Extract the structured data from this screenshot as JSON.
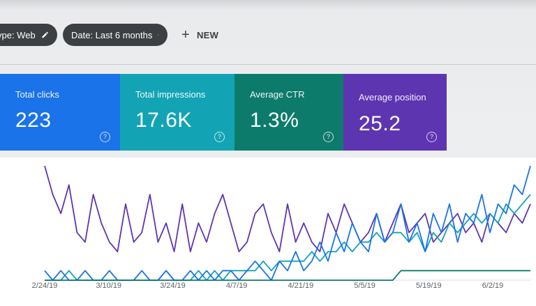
{
  "filters": {
    "type_chip": "ype: Web",
    "date_chip": "Date: Last 6 months",
    "new_button": "NEW",
    "edit_icon": "pencil-icon",
    "plus_icon": "plus-icon"
  },
  "cards": [
    {
      "title": "Total clicks",
      "value": "223",
      "color": "#1a73e8"
    },
    {
      "title": "Total impressions",
      "value": "17.6K",
      "color": "#12a4b4"
    },
    {
      "title": "Average CTR",
      "value": "1.3%",
      "color": "#0d7b6b"
    },
    {
      "title": "Average position",
      "value": "25.2",
      "color": "#5e35b1"
    }
  ],
  "help_glyph": "?",
  "chart_data": {
    "type": "line",
    "x_tick_labels": [
      "2/24/19",
      "3/10/19",
      "3/24/19",
      "4/7/19",
      "4/21/19",
      "5/5/19",
      "5/19/19",
      "6/2/19"
    ],
    "grid": false,
    "series": [
      {
        "color": "#5e35b1",
        "values": [
          12,
          9,
          7,
          10,
          5,
          4,
          9,
          6,
          4,
          3,
          8,
          4,
          5,
          9,
          4,
          6,
          3,
          8,
          3,
          6,
          4,
          7,
          9,
          6,
          3,
          4,
          7,
          8,
          5,
          3,
          8,
          4,
          6,
          4,
          3,
          7,
          5,
          8,
          6,
          4,
          5,
          7,
          4,
          6,
          8,
          5,
          6,
          7,
          4,
          5,
          6,
          7,
          5,
          6,
          4,
          7,
          6,
          5,
          7,
          6,
          8
        ]
      },
      {
        "color": "#12a4b4",
        "values": [
          0,
          0,
          0,
          1,
          0,
          0,
          0,
          0,
          0,
          0,
          0,
          0,
          0,
          0,
          0,
          1,
          0,
          0,
          0,
          1,
          0,
          1,
          0,
          1,
          1,
          1,
          1,
          2,
          1,
          2,
          2,
          2,
          2,
          3,
          2,
          3,
          3,
          4,
          3,
          4,
          4,
          5,
          4,
          5,
          5,
          4,
          5,
          3,
          5,
          4,
          6,
          5,
          6,
          7,
          6,
          7,
          6,
          8,
          7,
          8,
          9
        ]
      },
      {
        "color": "#1a73e8",
        "values": [
          1,
          0,
          1,
          0,
          0,
          1,
          0,
          0,
          1,
          0,
          0,
          0,
          1,
          0,
          0,
          1,
          0,
          0,
          1,
          0,
          1,
          0,
          1,
          1,
          0,
          1,
          2,
          1,
          0,
          2,
          1,
          3,
          1,
          2,
          4,
          2,
          5,
          3,
          6,
          4,
          3,
          7,
          4,
          5,
          8,
          4,
          6,
          3,
          7,
          5,
          8,
          4,
          7,
          6,
          9,
          5,
          8,
          7,
          10,
          9,
          12
        ]
      },
      {
        "color": "#0d7b6b",
        "values": [
          0,
          0,
          0,
          0,
          0,
          0,
          0,
          0,
          0,
          0,
          0,
          0,
          0,
          0,
          0,
          0,
          0,
          0,
          0,
          0,
          0,
          0,
          0,
          0,
          0,
          0,
          0,
          0,
          0,
          0,
          0,
          0,
          0,
          0,
          0,
          0,
          0,
          0,
          0,
          0,
          0,
          0,
          0,
          0,
          1,
          1,
          1,
          1,
          1,
          1,
          1,
          1,
          1,
          1,
          1,
          1,
          1,
          1,
          1,
          1,
          1
        ]
      }
    ]
  }
}
